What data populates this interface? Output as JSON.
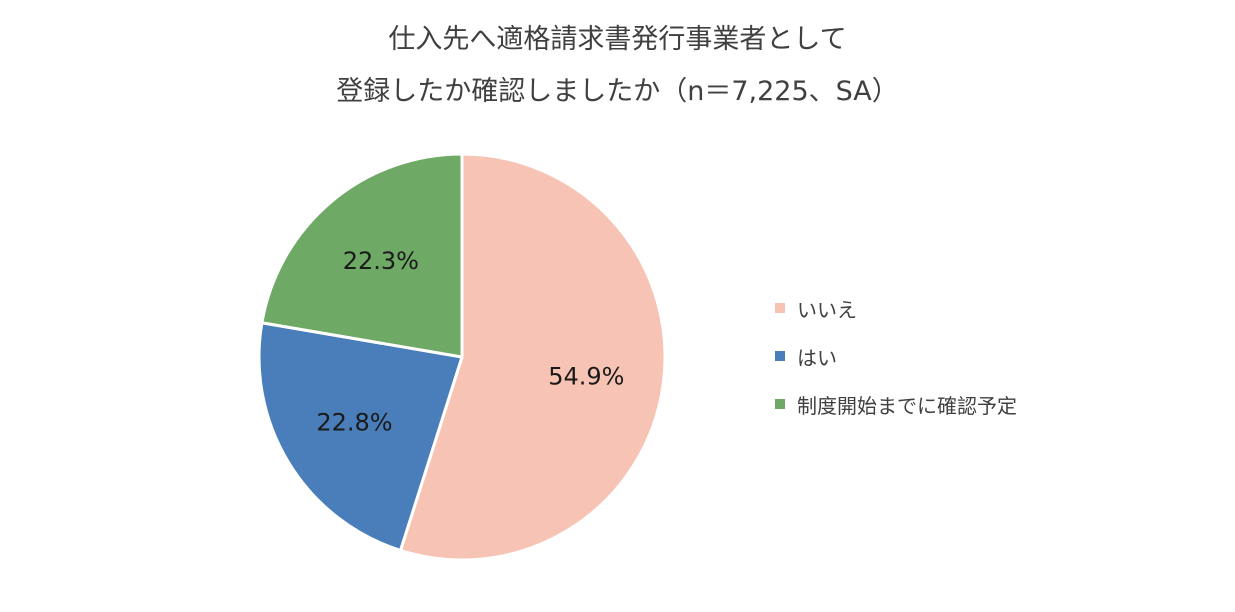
{
  "chart_data": {
    "type": "pie",
    "title_lines": [
      "仕入先へ適格請求書発行事業者として",
      "登録したか確認しましたか（n＝7,225、SA）"
    ],
    "categories": [
      "いいえ",
      "はい",
      "制度開始までに確認予定"
    ],
    "values": [
      54.9,
      22.8,
      22.3
    ],
    "data_labels": [
      "54.9%",
      "22.8%",
      "22.3%"
    ],
    "colors": [
      "#F7C3B4",
      "#4A7EBB",
      "#6EA965"
    ],
    "start_angle_deg": 0,
    "direction": "clockwise",
    "legend_position": "right"
  }
}
